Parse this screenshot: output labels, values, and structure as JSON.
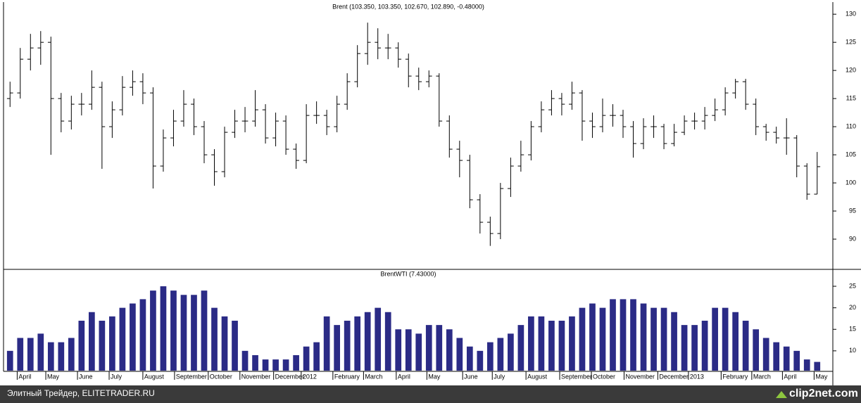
{
  "chart_data": [
    {
      "type": "ohlc",
      "title": "Brent (103.350, 103.350, 102.670, 102.890, -0.48000)",
      "color": "#000000",
      "open": [
        115,
        116,
        122,
        124,
        125,
        115,
        111,
        114,
        114,
        117,
        110,
        113,
        117,
        118,
        116,
        103,
        108,
        111,
        114,
        110,
        105,
        102,
        109,
        111,
        111,
        113,
        108,
        111,
        106,
        104,
        112,
        112,
        110,
        114,
        118,
        123,
        125,
        124,
        124,
        122,
        119,
        118,
        119,
        111,
        106,
        104,
        97,
        93,
        91,
        99,
        103,
        105,
        110,
        113,
        115,
        114,
        116,
        111,
        110,
        112,
        112,
        110,
        107,
        110,
        110,
        107,
        109,
        111,
        111,
        112,
        113,
        116,
        118,
        114,
        110,
        109,
        108,
        108,
        103,
        98
      ],
      "high": [
        118,
        124,
        126.5,
        127,
        126,
        116,
        115.5,
        116,
        120,
        118,
        114.5,
        119,
        120,
        119.5,
        117,
        109.5,
        113,
        116.5,
        115,
        111,
        106,
        110,
        113,
        113.5,
        116.5,
        114,
        112.5,
        112,
        107,
        114,
        114.5,
        113,
        115.5,
        119.5,
        124.5,
        128.5,
        127.5,
        126.5,
        125,
        123,
        120.5,
        120,
        119.5,
        112,
        107.5,
        105,
        98,
        94,
        100,
        104.5,
        107.5,
        111,
        114.5,
        116.5,
        116,
        118,
        116.5,
        112.5,
        115,
        114,
        113,
        111,
        111.5,
        112,
        110.5,
        110.5,
        112,
        112.5,
        113.5,
        115,
        117,
        118.5,
        118.5,
        115,
        110.5,
        110,
        111.5,
        108.5,
        103.5,
        105.5
      ],
      "low": [
        113.5,
        115,
        120,
        121,
        105,
        109,
        109.5,
        112,
        113,
        102.5,
        108,
        112,
        115.5,
        114,
        99,
        102,
        106.5,
        110,
        108.5,
        103.5,
        99.5,
        101,
        108,
        109,
        110,
        107,
        106.5,
        105,
        102.5,
        103.5,
        110.5,
        108.5,
        109,
        113,
        117,
        121,
        122,
        122,
        120.5,
        117,
        116.5,
        117,
        110,
        104.5,
        101,
        95.5,
        91,
        88.8,
        90,
        97.5,
        102,
        104,
        109,
        112,
        112,
        113,
        107.5,
        108,
        109,
        110,
        108,
        104.5,
        106,
        108,
        106,
        106.5,
        108.5,
        109.5,
        109.5,
        111,
        112,
        115,
        113,
        108.5,
        107.5,
        107,
        105,
        101,
        97,
        98
      ],
      "close": [
        116,
        122,
        124,
        125,
        115,
        111,
        114,
        114,
        117,
        110,
        113,
        117,
        118,
        116,
        103,
        108,
        111,
        114,
        110,
        105,
        102,
        109,
        111,
        111,
        113,
        108,
        111,
        106,
        104,
        112,
        112,
        110,
        114,
        118,
        123,
        125,
        124,
        124,
        122,
        119,
        118,
        119,
        111,
        106,
        104,
        97,
        93,
        91,
        99,
        103,
        105,
        110,
        113,
        115,
        114,
        116,
        111,
        110,
        112,
        112,
        110,
        107,
        110,
        110,
        107,
        109,
        111,
        111,
        112,
        113,
        116,
        118,
        114,
        110,
        109,
        108,
        108,
        103,
        98,
        102.89
      ],
      "xlim": [
        -0.5,
        79.5
      ],
      "ylim": [
        84.75,
        131.9
      ],
      "yticks": [
        90,
        95,
        100,
        105,
        110,
        115,
        120,
        125,
        130
      ]
    },
    {
      "type": "bar",
      "title": "BrentWTI (7.43000)",
      "color": "#2b2b86",
      "values": [
        10,
        13,
        13,
        14,
        12,
        12,
        13,
        17,
        19,
        17,
        18,
        20,
        21,
        22,
        24,
        25,
        24,
        23,
        23,
        24,
        20,
        18,
        17,
        10,
        9,
        8,
        8,
        8,
        9,
        11,
        12,
        18,
        16,
        17,
        18,
        19,
        20,
        19,
        15,
        15,
        14,
        16,
        16,
        15,
        13,
        11,
        10,
        12,
        13,
        14,
        16,
        18,
        18,
        17,
        17,
        18,
        20,
        21,
        20,
        22,
        22,
        22,
        21,
        20,
        20,
        19,
        16,
        16,
        17,
        20,
        20,
        19,
        17,
        15,
        13,
        12,
        11,
        10,
        8,
        7.43
      ],
      "xlim": [
        -0.5,
        79.5
      ],
      "ylim": [
        5.4,
        28.6
      ],
      "yticks": [
        10,
        15,
        20,
        25
      ],
      "xticks": [
        {
          "value": 0.7,
          "label": "April"
        },
        {
          "value": 3.5,
          "label": "May"
        },
        {
          "value": 6.6,
          "label": "June"
        },
        {
          "value": 9.7,
          "label": "July"
        },
        {
          "value": 13.0,
          "label": "August"
        },
        {
          "value": 16.1,
          "label": "September"
        },
        {
          "value": 19.4,
          "label": "October"
        },
        {
          "value": 22.5,
          "label": "November"
        },
        {
          "value": 25.8,
          "label": "December"
        },
        {
          "value": 28.5,
          "label": "2012"
        },
        {
          "value": 31.6,
          "label": "February"
        },
        {
          "value": 34.6,
          "label": "March"
        },
        {
          "value": 37.8,
          "label": "April"
        },
        {
          "value": 40.8,
          "label": "May"
        },
        {
          "value": 44.3,
          "label": "June"
        },
        {
          "value": 47.2,
          "label": "July"
        },
        {
          "value": 50.5,
          "label": "August"
        },
        {
          "value": 53.8,
          "label": "September"
        },
        {
          "value": 56.9,
          "label": "October"
        },
        {
          "value": 60.1,
          "label": "November"
        },
        {
          "value": 63.4,
          "label": "December"
        },
        {
          "value": 66.4,
          "label": "2013"
        },
        {
          "value": 69.6,
          "label": "February"
        },
        {
          "value": 72.6,
          "label": "March"
        },
        {
          "value": 75.6,
          "label": "April"
        },
        {
          "value": 78.7,
          "label": "May"
        }
      ]
    }
  ],
  "footer": {
    "left": "Элитный Трейдер, ELITETRADER.RU",
    "logo": "clip2net.com"
  }
}
